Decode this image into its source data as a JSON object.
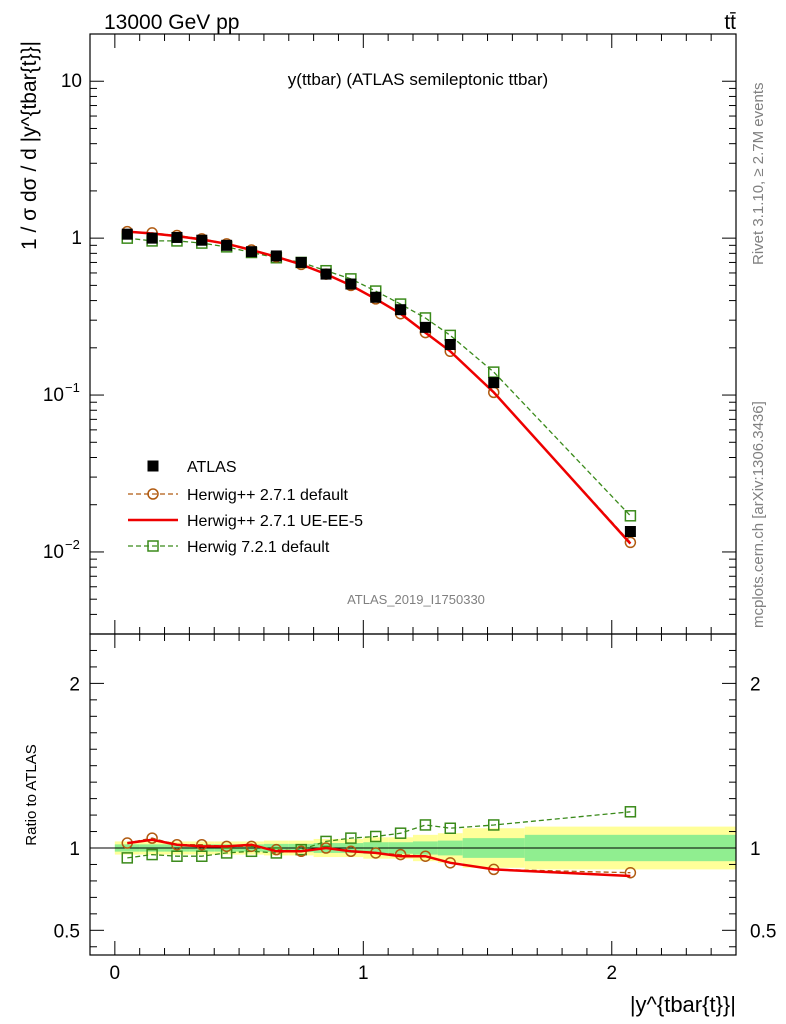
{
  "header": {
    "left": "13000 GeV pp",
    "right": "tt̄"
  },
  "side_labels": {
    "rivet": "Rivet 3.1.10, ≥ 2.7M events",
    "mcplots": "mcplots.cern.ch [arXiv:1306.3436]"
  },
  "colors": {
    "atlas": "#000000",
    "herwigpp_default": "#b05a10",
    "herwigpp_ueee5": "#ee0000",
    "herwig7": "#3a8a1a",
    "band_inner": "#90ee90",
    "band_outer": "#ffff99"
  },
  "chart_data": [
    {
      "type": "scatter",
      "panel": "main",
      "title": "y(ttbar) (ATLAS semileptonic ttbar)",
      "watermark": "ATLAS_2019_I1750330",
      "ylabel": "1 / σ dσ / d |y^{tbar{t}}|",
      "yscale": "log",
      "ylim": [
        0.003,
        20
      ],
      "xlim": [
        -0.1,
        2.5
      ],
      "yticks": [
        {
          "v": 10,
          "label": "10"
        },
        {
          "v": 1,
          "label": "1"
        },
        {
          "v": 0.1,
          "label": "10",
          "sup": "−1"
        },
        {
          "v": 0.01,
          "label": "10",
          "sup": "−2"
        }
      ],
      "x": [
        0.05,
        0.15,
        0.25,
        0.35,
        0.45,
        0.55,
        0.65,
        0.75,
        0.85,
        0.95,
        1.05,
        1.15,
        1.25,
        1.35,
        1.525,
        2.075
      ],
      "x_edges": [
        0.0,
        0.1,
        0.2,
        0.3,
        0.4,
        0.5,
        0.6,
        0.7,
        0.8,
        0.9,
        1.0,
        1.1,
        1.2,
        1.3,
        1.4,
        1.65,
        2.5
      ],
      "series": [
        {
          "name": "ATLAS",
          "style": "filled-square",
          "values": [
            1.06,
            1.0,
            1.01,
            0.97,
            0.9,
            0.82,
            0.77,
            0.7,
            0.59,
            0.51,
            0.42,
            0.35,
            0.27,
            0.21,
            0.12,
            0.0135
          ]
        },
        {
          "name": "Herwig++ 2.7.1 default",
          "style": "dashed-circle",
          "values": [
            1.1,
            1.08,
            1.04,
            0.99,
            0.92,
            0.84,
            0.76,
            0.68,
            0.59,
            0.5,
            0.41,
            0.33,
            0.25,
            0.19,
            0.104,
            0.0115
          ]
        },
        {
          "name": "Herwig++ 2.7.1 UE-EE-5",
          "style": "solid-line",
          "values": [
            1.1,
            1.07,
            1.03,
            0.98,
            0.92,
            0.84,
            0.76,
            0.68,
            0.59,
            0.5,
            0.41,
            0.33,
            0.25,
            0.19,
            0.104,
            0.0113
          ]
        },
        {
          "name": "Herwig 7.2.1 default",
          "style": "dashed-open-square",
          "values": [
            1.0,
            0.96,
            0.96,
            0.93,
            0.88,
            0.81,
            0.75,
            0.7,
            0.62,
            0.55,
            0.46,
            0.38,
            0.31,
            0.24,
            0.14,
            0.017
          ]
        }
      ]
    },
    {
      "type": "scatter",
      "panel": "ratio",
      "ylabel": "Ratio to ATLAS",
      "xlabel": "|y^{tbar{t}}|",
      "ylim": [
        0.35,
        2.3
      ],
      "xlim": [
        -0.1,
        2.5
      ],
      "yticks": [
        0.5,
        1,
        2
      ],
      "xticks": [
        0,
        1,
        2
      ],
      "band_inner": [
        0.022,
        0.022,
        0.022,
        0.022,
        0.022,
        0.022,
        0.025,
        0.025,
        0.03,
        0.03,
        0.035,
        0.035,
        0.04,
        0.045,
        0.06,
        0.08
      ],
      "band_outer": [
        0.04,
        0.04,
        0.04,
        0.04,
        0.04,
        0.04,
        0.045,
        0.045,
        0.055,
        0.055,
        0.065,
        0.065,
        0.08,
        0.09,
        0.12,
        0.13
      ],
      "series": [
        {
          "name": "Herwig++ 2.7.1 default",
          "values": [
            1.03,
            1.06,
            1.02,
            1.02,
            1.01,
            1.01,
            0.99,
            0.98,
            1.0,
            0.98,
            0.97,
            0.96,
            0.95,
            0.91,
            0.87,
            0.85
          ]
        },
        {
          "name": "Herwig++ 2.7.1 UE-EE-5",
          "values": [
            1.03,
            1.05,
            1.02,
            1.01,
            1.01,
            1.02,
            0.98,
            0.98,
            1.0,
            0.98,
            0.97,
            0.95,
            0.95,
            0.91,
            0.87,
            0.83
          ]
        },
        {
          "name": "Herwig 7.2.1 default",
          "values": [
            0.94,
            0.96,
            0.95,
            0.95,
            0.97,
            0.98,
            0.97,
            0.99,
            1.04,
            1.06,
            1.07,
            1.09,
            1.14,
            1.12,
            1.14,
            1.22
          ]
        }
      ]
    }
  ]
}
